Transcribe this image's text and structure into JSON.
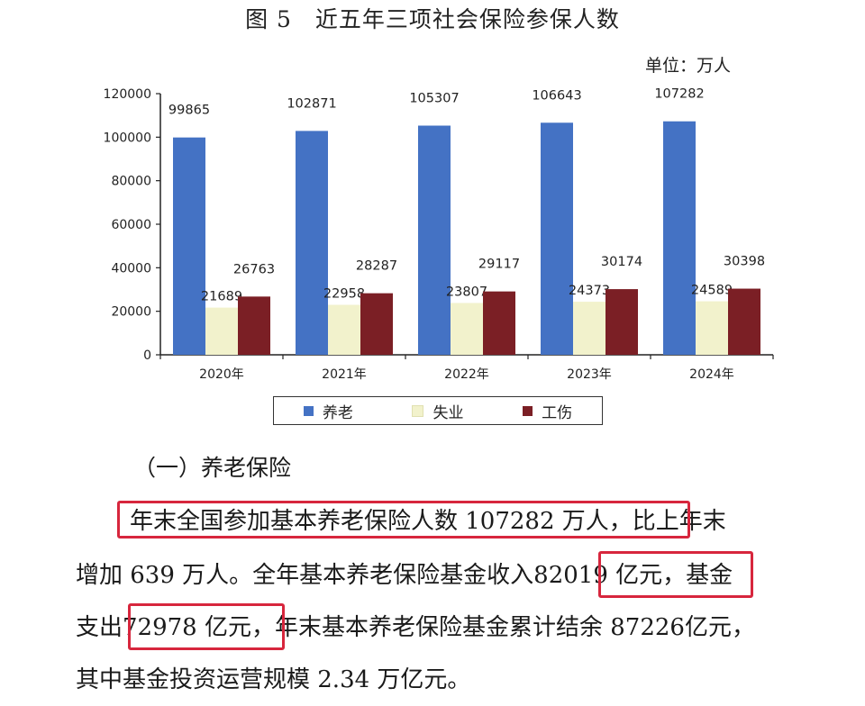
{
  "figure": {
    "title": "图 5　近五年三项社会保险参保人数",
    "unit": "单位：万人"
  },
  "chart_data": {
    "type": "bar",
    "categories": [
      "2020年",
      "2021年",
      "2022年",
      "2023年",
      "2024年"
    ],
    "series": [
      {
        "name": "养老",
        "color": "#4472c4",
        "values": [
          99865,
          102871,
          105307,
          106643,
          107282
        ]
      },
      {
        "name": "失业",
        "color": "#f2f2cc",
        "values": [
          21689,
          22958,
          23807,
          24373,
          24589
        ]
      },
      {
        "name": "工伤",
        "color": "#7b1f25",
        "values": [
          26763,
          28287,
          29117,
          30174,
          30398
        ]
      }
    ],
    "ylim": [
      0,
      120000
    ],
    "yticks": [
      0,
      20000,
      40000,
      60000,
      80000,
      100000,
      120000
    ],
    "legend": "bottom",
    "grid": false
  },
  "section": {
    "heading": "（一）养老保险"
  },
  "paragraph": {
    "line1_a": "年末全国参加基本养老保险人数 107282 万人",
    "line1_b": "，比上年末",
    "line2_a": "增加 639 万人。全年基本养老保险基金收入",
    "line2_b": "82019 亿元",
    "line2_c": "，基金",
    "line3_a": "支出",
    "line3_b": "72978 亿元",
    "line3_c": "，年末基本养老保险基金累计结余 87226亿元，",
    "line4": "其中基金投资运营规模 2.34 万亿元。"
  }
}
